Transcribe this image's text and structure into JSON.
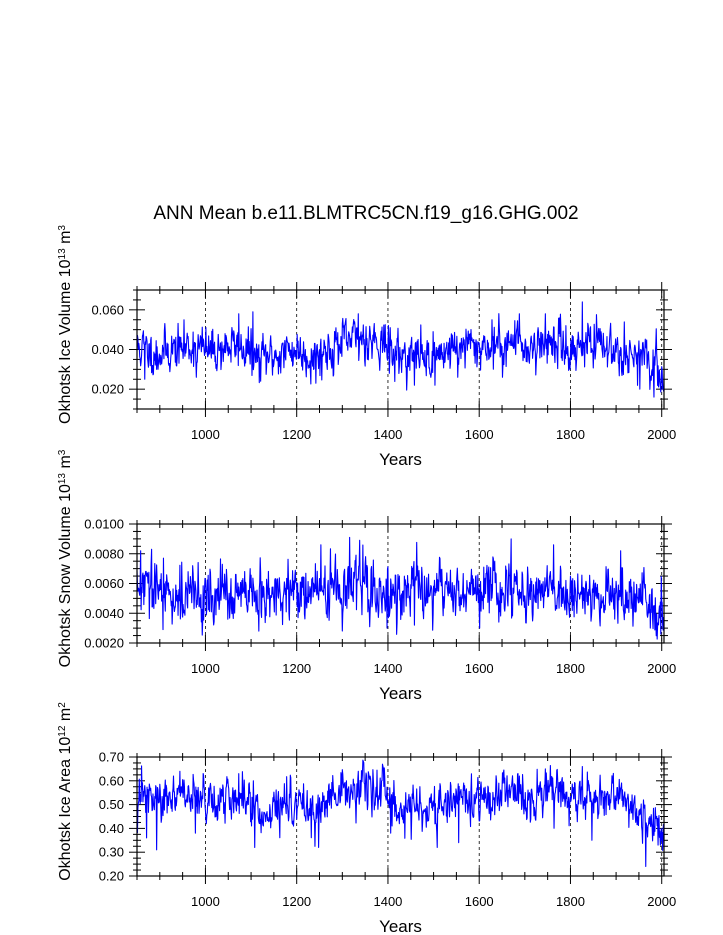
{
  "figure": {
    "title": "ANN Mean b.e11.BLMTRC5CN.f19_g16.GHG.002"
  },
  "chart_data": [
    {
      "type": "line",
      "title": "ANN Mean b.e11.BLMTRC5CN.f19_g16.GHG.002",
      "xlabel": "Years",
      "ylabel_main": "Okhotsk Ice Volume 10",
      "ylabel_exp": "13",
      "ylabel_unit": " m",
      "ylabel_unit_exp": "3",
      "xlim": [
        850,
        2005
      ],
      "ylim": [
        0.01,
        0.07
      ],
      "xticks": [
        1000,
        1200,
        1400,
        1600,
        1800,
        2000
      ],
      "xtick_labels": [
        "1000",
        "1200",
        "1400",
        "1600",
        "1800",
        "2000"
      ],
      "yticks": [
        0.02,
        0.04,
        0.06
      ],
      "ytick_labels": [
        "0.020",
        "0.040",
        "0.060"
      ],
      "series": [
        {
          "name": "Okhotsk Ice Volume",
          "color": "#0000ff",
          "x_start": 850,
          "x_end": 2005,
          "keys": [
            [
              850,
              0.041
            ],
            [
              870,
              0.04
            ],
            [
              890,
              0.038
            ],
            [
              910,
              0.039
            ],
            [
              930,
              0.04
            ],
            [
              950,
              0.041
            ],
            [
              970,
              0.042
            ],
            [
              990,
              0.041
            ],
            [
              1010,
              0.039
            ],
            [
              1030,
              0.04
            ],
            [
              1050,
              0.042
            ],
            [
              1070,
              0.041
            ],
            [
              1090,
              0.04
            ],
            [
              1110,
              0.035
            ],
            [
              1130,
              0.036
            ],
            [
              1150,
              0.037
            ],
            [
              1170,
              0.038
            ],
            [
              1190,
              0.04
            ],
            [
              1210,
              0.039
            ],
            [
              1230,
              0.036
            ],
            [
              1250,
              0.038
            ],
            [
              1270,
              0.04
            ],
            [
              1290,
              0.042
            ],
            [
              1310,
              0.044
            ],
            [
              1330,
              0.045
            ],
            [
              1350,
              0.046
            ],
            [
              1370,
              0.045
            ],
            [
              1390,
              0.044
            ],
            [
              1410,
              0.038
            ],
            [
              1430,
              0.037
            ],
            [
              1450,
              0.037
            ],
            [
              1470,
              0.038
            ],
            [
              1490,
              0.036
            ],
            [
              1510,
              0.038
            ],
            [
              1530,
              0.04
            ],
            [
              1550,
              0.041
            ],
            [
              1570,
              0.042
            ],
            [
              1590,
              0.041
            ],
            [
              1610,
              0.042
            ],
            [
              1630,
              0.041
            ],
            [
              1650,
              0.043
            ],
            [
              1670,
              0.044
            ],
            [
              1690,
              0.043
            ],
            [
              1710,
              0.041
            ],
            [
              1730,
              0.042
            ],
            [
              1750,
              0.044
            ],
            [
              1770,
              0.043
            ],
            [
              1790,
              0.04
            ],
            [
              1810,
              0.04
            ],
            [
              1830,
              0.043
            ],
            [
              1850,
              0.042
            ],
            [
              1870,
              0.041
            ],
            [
              1890,
              0.041
            ],
            [
              1910,
              0.04
            ],
            [
              1930,
              0.039
            ],
            [
              1950,
              0.035
            ],
            [
              1970,
              0.033
            ],
            [
              1990,
              0.03
            ],
            [
              2005,
              0.027
            ]
          ],
          "noise_sd": 0.0055,
          "events": [
            [
              867,
              0.025
            ],
            [
              893,
              0.03
            ],
            [
              980,
              0.026
            ],
            [
              1073,
              0.058
            ],
            [
              1104,
              0.059
            ],
            [
              1121,
              0.024
            ],
            [
              1242,
              0.023
            ],
            [
              1300,
              0.053
            ],
            [
              1335,
              0.058
            ],
            [
              1403,
              0.028
            ],
            [
              1458,
              0.022
            ],
            [
              1503,
              0.022
            ],
            [
              1553,
              0.026
            ],
            [
              1628,
              0.055
            ],
            [
              1651,
              0.026
            ],
            [
              1688,
              0.058
            ],
            [
              1745,
              0.058
            ],
            [
              1790,
              0.052
            ],
            [
              1826,
              0.064
            ],
            [
              1952,
              0.02
            ],
            [
              1983,
              0.016
            ],
            [
              1996,
              0.024
            ]
          ],
          "seed": 11
        }
      ]
    },
    {
      "type": "line",
      "xlabel": "Years",
      "ylabel_main": "Okhotsk Snow Volume 10",
      "ylabel_exp": "13",
      "ylabel_unit": " m",
      "ylabel_unit_exp": "3",
      "xlim": [
        850,
        2005
      ],
      "ylim": [
        0.002,
        0.01
      ],
      "xticks": [
        1000,
        1200,
        1400,
        1600,
        1800,
        2000
      ],
      "xtick_labels": [
        "1000",
        "1200",
        "1400",
        "1600",
        "1800",
        "2000"
      ],
      "yticks": [
        0.002,
        0.004,
        0.006,
        0.008,
        0.01
      ],
      "ytick_labels": [
        "0.0020",
        "0.0040",
        "0.0060",
        "0.0080",
        "0.0100"
      ],
      "series": [
        {
          "name": "Okhotsk Snow Volume",
          "color": "#0000ff",
          "x_start": 850,
          "x_end": 2005,
          "keys": [
            [
              850,
              0.0056
            ],
            [
              890,
              0.0055
            ],
            [
              930,
              0.0053
            ],
            [
              970,
              0.0052
            ],
            [
              1010,
              0.0051
            ],
            [
              1050,
              0.0052
            ],
            [
              1090,
              0.005
            ],
            [
              1130,
              0.005
            ],
            [
              1170,
              0.0052
            ],
            [
              1210,
              0.0055
            ],
            [
              1250,
              0.0056
            ],
            [
              1290,
              0.0055
            ],
            [
              1330,
              0.0057
            ],
            [
              1370,
              0.0056
            ],
            [
              1410,
              0.0053
            ],
            [
              1450,
              0.0054
            ],
            [
              1490,
              0.0055
            ],
            [
              1530,
              0.0055
            ],
            [
              1570,
              0.0056
            ],
            [
              1610,
              0.0055
            ],
            [
              1650,
              0.0057
            ],
            [
              1690,
              0.0056
            ],
            [
              1730,
              0.0055
            ],
            [
              1770,
              0.0055
            ],
            [
              1810,
              0.0054
            ],
            [
              1850,
              0.0054
            ],
            [
              1890,
              0.0052
            ],
            [
              1930,
              0.005
            ],
            [
              1970,
              0.0045
            ],
            [
              2005,
              0.0035
            ]
          ],
          "noise_sd": 0.00095,
          "events": [
            [
              858,
              0.0082
            ],
            [
              882,
              0.0083
            ],
            [
              907,
              0.0029
            ],
            [
              1117,
              0.0028
            ],
            [
              1253,
              0.0086
            ],
            [
              1316,
              0.0091
            ],
            [
              1338,
              0.0089
            ],
            [
              1398,
              0.003
            ],
            [
              1458,
              0.0032
            ],
            [
              1601,
              0.003
            ],
            [
              1670,
              0.009
            ],
            [
              1763,
              0.0086
            ],
            [
              1910,
              0.0082
            ],
            [
              1975,
              0.003
            ],
            [
              1998,
              0.0026
            ]
          ],
          "seed": 29
        }
      ]
    },
    {
      "type": "line",
      "xlabel": "Years",
      "ylabel_main": "Okhotsk Ice Area 10",
      "ylabel_exp": "12",
      "ylabel_unit": " m",
      "ylabel_unit_exp": "2",
      "xlim": [
        850,
        2005
      ],
      "ylim": [
        0.2,
        0.7
      ],
      "xticks": [
        1000,
        1200,
        1400,
        1600,
        1800,
        2000
      ],
      "xtick_labels": [
        "1000",
        "1200",
        "1400",
        "1600",
        "1800",
        "2000"
      ],
      "yticks": [
        0.2,
        0.3,
        0.4,
        0.5,
        0.6,
        0.7
      ],
      "ytick_labels": [
        "0.20",
        "0.30",
        "0.40",
        "0.50",
        "0.60",
        "0.70"
      ],
      "series": [
        {
          "name": "Okhotsk Ice Area",
          "color": "#0000ff",
          "x_start": 850,
          "x_end": 2005,
          "keys": [
            [
              850,
              0.54
            ],
            [
              870,
              0.53
            ],
            [
              890,
              0.51
            ],
            [
              910,
              0.52
            ],
            [
              930,
              0.53
            ],
            [
              950,
              0.53
            ],
            [
              970,
              0.54
            ],
            [
              990,
              0.53
            ],
            [
              1010,
              0.51
            ],
            [
              1030,
              0.52
            ],
            [
              1050,
              0.54
            ],
            [
              1070,
              0.53
            ],
            [
              1090,
              0.52
            ],
            [
              1110,
              0.46
            ],
            [
              1130,
              0.47
            ],
            [
              1150,
              0.48
            ],
            [
              1170,
              0.49
            ],
            [
              1190,
              0.51
            ],
            [
              1210,
              0.5
            ],
            [
              1230,
              0.47
            ],
            [
              1250,
              0.49
            ],
            [
              1270,
              0.51
            ],
            [
              1290,
              0.53
            ],
            [
              1310,
              0.55
            ],
            [
              1330,
              0.56
            ],
            [
              1350,
              0.57
            ],
            [
              1370,
              0.56
            ],
            [
              1390,
              0.55
            ],
            [
              1410,
              0.48
            ],
            [
              1430,
              0.47
            ],
            [
              1450,
              0.47
            ],
            [
              1470,
              0.49
            ],
            [
              1490,
              0.47
            ],
            [
              1510,
              0.49
            ],
            [
              1530,
              0.51
            ],
            [
              1550,
              0.52
            ],
            [
              1570,
              0.53
            ],
            [
              1590,
              0.52
            ],
            [
              1610,
              0.53
            ],
            [
              1630,
              0.52
            ],
            [
              1650,
              0.54
            ],
            [
              1670,
              0.55
            ],
            [
              1690,
              0.54
            ],
            [
              1710,
              0.52
            ],
            [
              1730,
              0.53
            ],
            [
              1750,
              0.55
            ],
            [
              1770,
              0.54
            ],
            [
              1790,
              0.51
            ],
            [
              1810,
              0.51
            ],
            [
              1830,
              0.54
            ],
            [
              1850,
              0.53
            ],
            [
              1870,
              0.52
            ],
            [
              1890,
              0.52
            ],
            [
              1910,
              0.51
            ],
            [
              1930,
              0.5
            ],
            [
              1950,
              0.46
            ],
            [
              1970,
              0.44
            ],
            [
              1990,
              0.4
            ],
            [
              2005,
              0.36
            ]
          ],
          "noise_sd": 0.045,
          "events": [
            [
              871,
              0.36
            ],
            [
              893,
              0.31
            ],
            [
              944,
              0.64
            ],
            [
              978,
              0.38
            ],
            [
              1073,
              0.63
            ],
            [
              1108,
              0.32
            ],
            [
              1248,
              0.32
            ],
            [
              1335,
              0.64
            ],
            [
              1406,
              0.38
            ],
            [
              1508,
              0.32
            ],
            [
              1555,
              0.34
            ],
            [
              1688,
              0.62
            ],
            [
              1745,
              0.65
            ],
            [
              1826,
              0.66
            ],
            [
              1847,
              0.35
            ],
            [
              1965,
              0.24
            ],
            [
              1992,
              0.33
            ]
          ],
          "seed": 47
        }
      ]
    }
  ]
}
